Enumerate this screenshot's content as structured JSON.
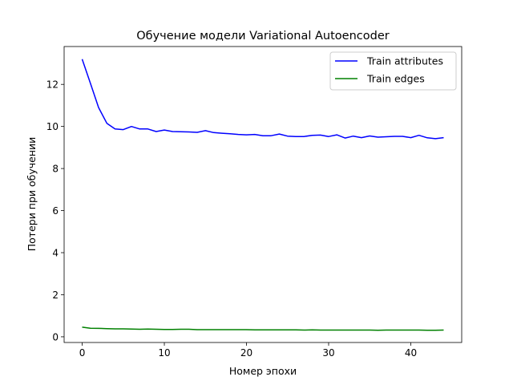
{
  "chart_data": {
    "type": "line",
    "title": "Обучение модели Variational Autoencoder",
    "xlabel": "Номер эпохи",
    "ylabel": "Потери при обучении",
    "xlim": [
      -2.2,
      46.2
    ],
    "ylim": [
      -0.27,
      13.8
    ],
    "xticks": [
      0,
      10,
      20,
      30,
      40
    ],
    "yticks": [
      0,
      2,
      4,
      6,
      8,
      10,
      12
    ],
    "grid": false,
    "legend_position": "upper right",
    "x": [
      0,
      1,
      2,
      3,
      4,
      5,
      6,
      7,
      8,
      9,
      10,
      11,
      12,
      13,
      14,
      15,
      16,
      17,
      18,
      19,
      20,
      21,
      22,
      23,
      24,
      25,
      26,
      27,
      28,
      29,
      30,
      31,
      32,
      33,
      34,
      35,
      36,
      37,
      38,
      39,
      40,
      41,
      42,
      43,
      44
    ],
    "series": [
      {
        "name": "Train attributes",
        "color": "#0000ff",
        "values": [
          13.2,
          12.05,
          10.9,
          10.15,
          9.88,
          9.85,
          10.0,
          9.88,
          9.88,
          9.76,
          9.83,
          9.76,
          9.75,
          9.74,
          9.72,
          9.8,
          9.71,
          9.68,
          9.65,
          9.62,
          9.6,
          9.62,
          9.56,
          9.56,
          9.64,
          9.54,
          9.52,
          9.52,
          9.58,
          9.59,
          9.52,
          9.6,
          9.45,
          9.54,
          9.47,
          9.55,
          9.49,
          9.51,
          9.53,
          9.53,
          9.47,
          9.58,
          9.46,
          9.42,
          9.47
        ]
      },
      {
        "name": "Train edges",
        "color": "#008000",
        "values": [
          0.46,
          0.41,
          0.4,
          0.39,
          0.38,
          0.38,
          0.37,
          0.36,
          0.37,
          0.36,
          0.35,
          0.35,
          0.36,
          0.36,
          0.34,
          0.34,
          0.34,
          0.34,
          0.34,
          0.34,
          0.34,
          0.33,
          0.33,
          0.33,
          0.33,
          0.33,
          0.33,
          0.32,
          0.33,
          0.32,
          0.32,
          0.32,
          0.32,
          0.32,
          0.32,
          0.32,
          0.31,
          0.32,
          0.32,
          0.32,
          0.32,
          0.32,
          0.31,
          0.31,
          0.32
        ]
      }
    ]
  }
}
